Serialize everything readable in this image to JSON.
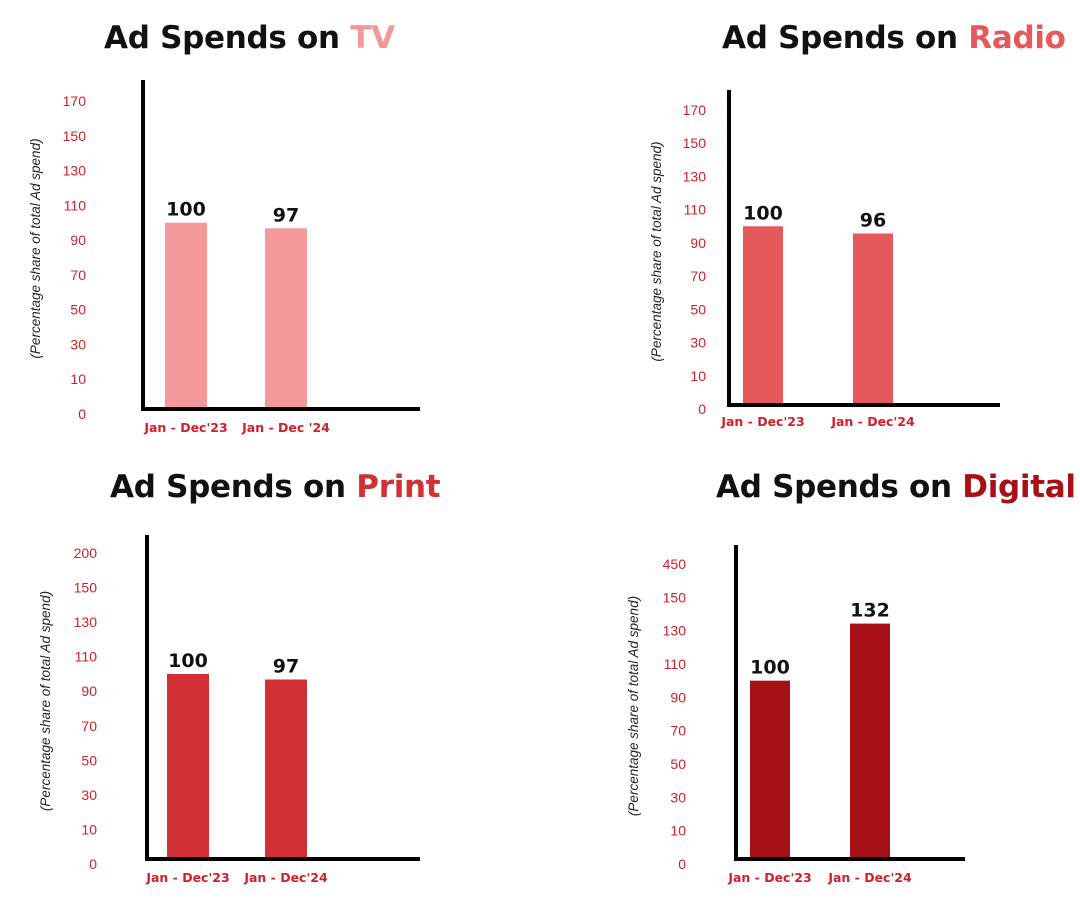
{
  "colors": {
    "tick": "#d0202a",
    "axis": "#000000",
    "text": "#111111"
  },
  "chart_data": [
    {
      "type": "bar",
      "title": "Ad Spends on TV",
      "title_prefix": "Ad Spends on ",
      "title_highlight": "TV",
      "highlight_color": "#f4999b",
      "ylabel": "(Percentage share of total Ad spend)",
      "yticks": [
        "0",
        "10",
        "30",
        "50",
        "70",
        "90",
        "110",
        "130",
        "150",
        "170"
      ],
      "categories": [
        "Jan - Dec'23",
        "Jan - Dec '24"
      ],
      "series": [
        {
          "values": [
            100,
            97
          ],
          "color": "#f4999b"
        }
      ],
      "data_labels": [
        "100",
        "97"
      ],
      "ylim": [
        0,
        170
      ],
      "grid": false
    },
    {
      "type": "bar",
      "title": "Ad Spends on Radio",
      "title_prefix": "Ad Spends on ",
      "title_highlight": "Radio",
      "highlight_color": "#e5595c",
      "ylabel": "(Percentage share of total Ad spend)",
      "yticks": [
        "0",
        "10",
        "30",
        "50",
        "70",
        "90",
        "110",
        "130",
        "150",
        "170"
      ],
      "categories": [
        "Jan - Dec'23",
        "Jan - Dec'24"
      ],
      "series": [
        {
          "values": [
            100,
            96
          ],
          "color": "#e5595c"
        }
      ],
      "data_labels": [
        "100",
        "96"
      ],
      "ylim": [
        0,
        170
      ],
      "grid": false
    },
    {
      "type": "bar",
      "title": "Ad Spends on Print",
      "title_prefix": "Ad Spends on ",
      "title_highlight": "Print",
      "highlight_color": "#d13035",
      "ylabel": "(Percentage share of total Ad spend)",
      "yticks": [
        "0",
        "10",
        "30",
        "50",
        "70",
        "90",
        "110",
        "130",
        "150",
        "200"
      ],
      "categories": [
        "Jan - Dec'23",
        "Jan - Dec'24"
      ],
      "series": [
        {
          "values": [
            100,
            97
          ],
          "color": "#d13035"
        }
      ],
      "data_labels": [
        "100",
        "97"
      ],
      "ylim": [
        0,
        200
      ],
      "grid": false
    },
    {
      "type": "bar",
      "title": "Ad Spends on Digital",
      "title_prefix": "Ad Spends on ",
      "title_highlight": "Digital",
      "highlight_color": "#a81017",
      "ylabel": "(Percentage share of total Ad spend)",
      "yticks": [
        "0",
        "10",
        "30",
        "50",
        "70",
        "90",
        "110",
        "130",
        "150",
        "450"
      ],
      "categories": [
        "Jan - Dec'23",
        "Jan - Dec'24"
      ],
      "series": [
        {
          "values": [
            100,
            132
          ],
          "color": "#a81017"
        }
      ],
      "data_labels": [
        "100",
        "132"
      ],
      "ylim": [
        0,
        450
      ],
      "grid": false
    }
  ]
}
